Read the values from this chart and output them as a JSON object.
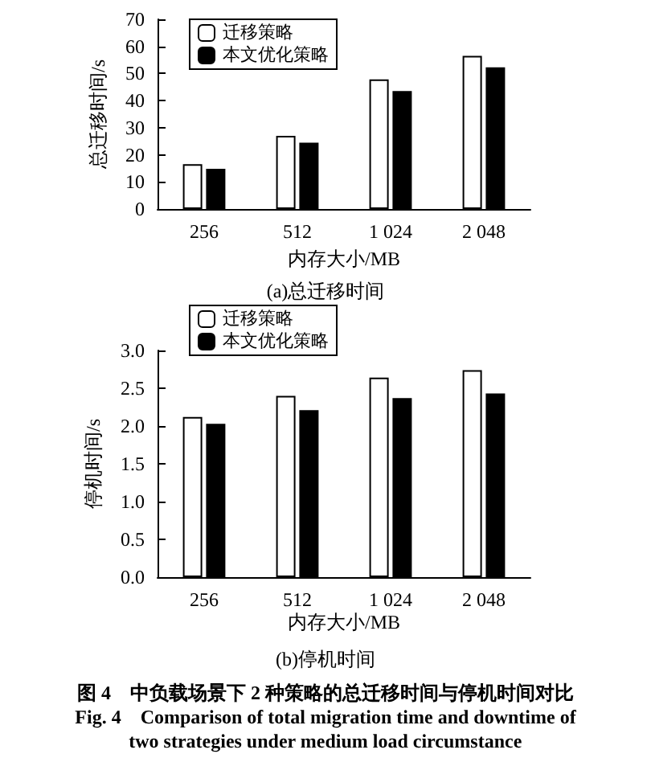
{
  "chart_data": [
    {
      "type": "bar",
      "title": "(a)总迁移时间",
      "xlabel": "内存大小/MB",
      "ylabel": "总迁移时间/s",
      "categories": [
        "256",
        "512",
        "1 024",
        "2 048"
      ],
      "series": [
        {
          "name": "迁移策略",
          "color": "#ffffff",
          "values": [
            16.5,
            27,
            47.8,
            56.5
          ]
        },
        {
          "name": "本文优化策略",
          "color": "#000000",
          "values": [
            14.8,
            24.5,
            43.5,
            52.3
          ]
        }
      ],
      "ylim": [
        0,
        70
      ],
      "yticks": [
        0,
        10,
        20,
        30,
        40,
        50,
        60,
        70
      ],
      "legend": "top left",
      "grid": false
    },
    {
      "type": "bar",
      "title": "(b)停机时间",
      "xlabel": "内存大小/MB",
      "ylabel": "停机时间/s",
      "categories": [
        "256",
        "512",
        "1 024",
        "2 048"
      ],
      "series": [
        {
          "name": "迁移策略",
          "color": "#ffffff",
          "values": [
            2.12,
            2.4,
            2.64,
            2.74
          ]
        },
        {
          "name": "本文优化策略",
          "color": "#000000",
          "values": [
            2.03,
            2.21,
            2.37,
            2.43
          ]
        }
      ],
      "ylim": [
        0,
        3
      ],
      "yticks": [
        {
          "value": 0,
          "label": "0.0"
        },
        {
          "value": 0.5,
          "label": "0.5"
        },
        {
          "value": 1,
          "label": "1.0"
        },
        {
          "value": 1.5,
          "label": "1.5"
        },
        {
          "value": 2,
          "label": "2.0"
        },
        {
          "value": 2.5,
          "label": "2.5"
        },
        {
          "value": 3,
          "label": "3.0"
        }
      ],
      "legend": "top left",
      "grid": false,
      "annotations": [
        "图 4　中负载场景下 2 种策略的总迁移时间与停机时间对比",
        "Fig. 4　Comparison of total migration time and downtime of",
        "two strategies under medium load circumstance"
      ]
    }
  ]
}
